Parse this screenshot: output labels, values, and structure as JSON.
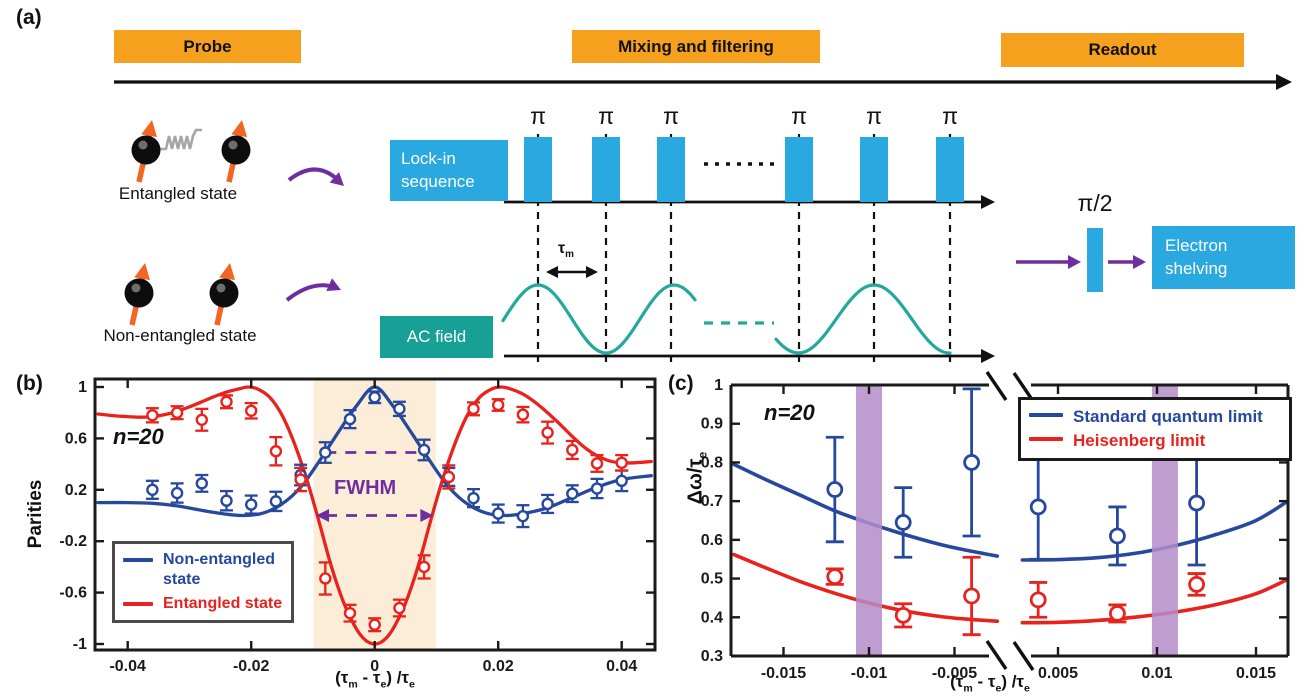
{
  "colors": {
    "stage_orange": "#F5A11E",
    "pulse_blue": "#2AA9E0",
    "teal": "#16A096",
    "teal_wave": "#23A89C",
    "purple": "#6E2F9E",
    "spin_orange": "#F26522",
    "series_blue": "#26499D",
    "series_red": "#E8231E",
    "shade_cream": "#FCEDD8",
    "band_purple": "#B58CC9"
  },
  "diagram": {
    "panel_label": "(a)",
    "stages": [
      {
        "label": "Probe"
      },
      {
        "label": "Mixing and filtering"
      },
      {
        "label": "Readout"
      }
    ],
    "entangled_label": "Entangled state",
    "non_entangled_label": "Non-entangled state",
    "lockin_lines": [
      "Lock-in",
      "sequence"
    ],
    "ac_label": "AC field",
    "electron_lines": [
      "Electron",
      "shelving"
    ],
    "pi_symbol": "π",
    "pi_half": "π/2",
    "tau_m_parts": [
      [
        "τ",
        ""
      ],
      [
        "m",
        "sub"
      ]
    ]
  },
  "chart_data": [
    {
      "id": "b",
      "type": "scatter",
      "panel_label": "(b)",
      "ylabel": "Parities",
      "xlabel_parts": [
        [
          "(τ",
          ""
        ],
        [
          "m",
          "sub"
        ],
        [
          " - τ",
          ""
        ],
        [
          "e",
          "sub"
        ],
        [
          ") /τ",
          ""
        ],
        [
          "e",
          "sub"
        ]
      ],
      "annotation": "n=20",
      "fwhm_label": "FWHM",
      "xlim": [
        -0.0453,
        0.0454
      ],
      "ylim": [
        -1.06,
        1.07
      ],
      "x_ticks": [
        -0.04,
        -0.02,
        0,
        0.02,
        0.04
      ],
      "x_tick_labels": [
        "-0.04",
        "-0.02",
        "0",
        "0.02",
        "0.04"
      ],
      "y_ticks": [
        1,
        0.6,
        0.2,
        -0.2,
        -0.6,
        -1
      ],
      "y_tick_labels": [
        "1",
        "0.6",
        "0.2",
        "-0.2",
        "-0.6",
        "-1"
      ],
      "shade_x": [
        -0.0099,
        0.0099
      ],
      "fwhm_dash_line": {
        "y": 0.49,
        "x": [
          -0.008,
          0.008
        ]
      },
      "fwhm_arrow": {
        "y": 0.0,
        "x": [
          -0.0095,
          0.0095
        ]
      },
      "legend": [
        {
          "label": "Non-entangled state",
          "color": "#26499D"
        },
        {
          "label": "Entangled state",
          "color": "#E8231E"
        }
      ],
      "series": [
        {
          "name": "Non-entangled state",
          "color": "#26499D",
          "points": [
            [
              -0.036,
              0.2,
              0.07
            ],
            [
              -0.032,
              0.175,
              0.075
            ],
            [
              -0.028,
              0.25,
              0.065
            ],
            [
              -0.024,
              0.115,
              0.075
            ],
            [
              -0.02,
              0.085,
              0.07
            ],
            [
              -0.016,
              0.11,
              0.075
            ],
            [
              -0.012,
              0.315,
              0.08
            ],
            [
              -0.008,
              0.49,
              0.08
            ],
            [
              -0.004,
              0.75,
              0.07
            ],
            [
              0,
              0.92,
              0.045
            ],
            [
              0.004,
              0.83,
              0.055
            ],
            [
              0.008,
              0.51,
              0.08
            ],
            [
              0.012,
              0.3,
              0.07
            ],
            [
              0.016,
              0.135,
              0.07
            ],
            [
              0.02,
              0.015,
              0.07
            ],
            [
              0.024,
              -0.005,
              0.085
            ],
            [
              0.028,
              0.09,
              0.07
            ],
            [
              0.032,
              0.17,
              0.065
            ],
            [
              0.036,
              0.21,
              0.075
            ],
            [
              0.04,
              0.27,
              0.08
            ]
          ],
          "curve": [
            [
              -0.0448,
              0.1
            ],
            [
              -0.04,
              0.1
            ],
            [
              -0.036,
              0.095
            ],
            [
              -0.032,
              0.075
            ],
            [
              -0.028,
              0.04
            ],
            [
              -0.024,
              0.01
            ],
            [
              -0.021,
              0.0
            ],
            [
              -0.018,
              0.02
            ],
            [
              -0.015,
              0.09
            ],
            [
              -0.012,
              0.22
            ],
            [
              -0.009,
              0.42
            ],
            [
              -0.006,
              0.64
            ],
            [
              -0.003,
              0.85
            ],
            [
              0,
              1.0
            ],
            [
              0.003,
              0.85
            ],
            [
              0.006,
              0.64
            ],
            [
              0.009,
              0.42
            ],
            [
              0.012,
              0.22
            ],
            [
              0.015,
              0.09
            ],
            [
              0.018,
              0.02
            ],
            [
              0.021,
              0.0
            ],
            [
              0.024,
              0.015
            ],
            [
              0.028,
              0.06
            ],
            [
              0.032,
              0.14
            ],
            [
              0.036,
              0.22
            ],
            [
              0.04,
              0.28
            ],
            [
              0.0448,
              0.31
            ]
          ]
        },
        {
          "name": "Entangled state",
          "color": "#E8231E",
          "points": [
            [
              -0.036,
              0.78,
              0.055
            ],
            [
              -0.032,
              0.8,
              0.05
            ],
            [
              -0.028,
              0.745,
              0.085
            ],
            [
              -0.024,
              0.885,
              0.05
            ],
            [
              -0.02,
              0.815,
              0.06
            ],
            [
              -0.016,
              0.5,
              0.11
            ],
            [
              -0.012,
              0.28,
              0.09
            ],
            [
              -0.008,
              -0.49,
              0.125
            ],
            [
              -0.004,
              -0.76,
              0.065
            ],
            [
              0,
              -0.85,
              0.05
            ],
            [
              0.004,
              -0.72,
              0.065
            ],
            [
              0.008,
              -0.4,
              0.09
            ],
            [
              0.012,
              0.3,
              0.09
            ],
            [
              0.016,
              0.83,
              0.05
            ],
            [
              0.02,
              0.86,
              0.045
            ],
            [
              0.024,
              0.785,
              0.06
            ],
            [
              0.028,
              0.645,
              0.085
            ],
            [
              0.032,
              0.51,
              0.07
            ],
            [
              0.036,
              0.405,
              0.065
            ],
            [
              0.04,
              0.41,
              0.06
            ]
          ],
          "curve": [
            [
              -0.0448,
              0.79
            ],
            [
              -0.042,
              0.775
            ],
            [
              -0.04,
              0.77
            ],
            [
              -0.038,
              0.765
            ],
            [
              -0.036,
              0.77
            ],
            [
              -0.034,
              0.785
            ],
            [
              -0.032,
              0.81
            ],
            [
              -0.03,
              0.845
            ],
            [
              -0.028,
              0.885
            ],
            [
              -0.026,
              0.925
            ],
            [
              -0.024,
              0.96
            ],
            [
              -0.022,
              0.985
            ],
            [
              -0.0205,
              1.0
            ],
            [
              -0.019,
              0.985
            ],
            [
              -0.017,
              0.92
            ],
            [
              -0.015,
              0.78
            ],
            [
              -0.013,
              0.56
            ],
            [
              -0.011,
              0.28
            ],
            [
              -0.009,
              -0.05
            ],
            [
              -0.007,
              -0.4
            ],
            [
              -0.005,
              -0.68
            ],
            [
              -0.003,
              -0.88
            ],
            [
              -0.0015,
              -0.97
            ],
            [
              0,
              -1.0
            ],
            [
              0.0015,
              -0.97
            ],
            [
              0.003,
              -0.88
            ],
            [
              0.005,
              -0.68
            ],
            [
              0.007,
              -0.4
            ],
            [
              0.009,
              -0.05
            ],
            [
              0.011,
              0.28
            ],
            [
              0.013,
              0.56
            ],
            [
              0.015,
              0.78
            ],
            [
              0.017,
              0.92
            ],
            [
              0.019,
              0.985
            ],
            [
              0.0205,
              1.0
            ],
            [
              0.022,
              0.985
            ],
            [
              0.024,
              0.945
            ],
            [
              0.026,
              0.88
            ],
            [
              0.028,
              0.8
            ],
            [
              0.03,
              0.71
            ],
            [
              0.032,
              0.615
            ],
            [
              0.034,
              0.53
            ],
            [
              0.036,
              0.465
            ],
            [
              0.038,
              0.425
            ],
            [
              0.04,
              0.41
            ],
            [
              0.042,
              0.41
            ],
            [
              0.0448,
              0.42
            ]
          ]
        }
      ]
    },
    {
      "id": "c",
      "type": "scatter",
      "panel_label": "(c)",
      "ylabel_parts": [
        [
          "Δω/τ",
          ""
        ],
        [
          "e",
          "sub"
        ]
      ],
      "xlabel_parts": [
        [
          "(τ",
          ""
        ],
        [
          "m",
          "sub"
        ],
        [
          " - τ",
          ""
        ],
        [
          "e",
          "sub"
        ],
        [
          ") /τ",
          ""
        ],
        [
          "e",
          "sub"
        ]
      ],
      "annotation": "n=20",
      "ylim": [
        0.3,
        1.0
      ],
      "y_ticks": [
        0.3,
        0.4,
        0.5,
        0.6,
        0.7,
        0.8,
        0.9,
        1
      ],
      "y_tick_labels": [
        "0.3",
        "0.4",
        "0.5",
        "0.6",
        "0.7",
        "0.8",
        "0.9",
        "1"
      ],
      "x_ticks_left": [
        -0.015,
        -0.01,
        -0.005
      ],
      "x_tick_labels_left": [
        "-0.015",
        "-0.01",
        "-0.005"
      ],
      "x_ticks_right": [
        0.005,
        0.01,
        0.015
      ],
      "x_tick_labels_right": [
        "0.005",
        "0.01",
        "0.015"
      ],
      "axis_break": true,
      "bands_x": [
        -0.01,
        0.0104
      ],
      "legend": [
        {
          "label": "Standard quantum limit",
          "color": "#26499D"
        },
        {
          "label": "Heisenberg limit",
          "color": "#E8231E"
        }
      ],
      "series": [
        {
          "name": "Standard quantum limit",
          "color": "#26499D",
          "points": [
            [
              -0.012,
              0.73,
              0.135
            ],
            [
              -0.008,
              0.645,
              0.09
            ],
            [
              -0.004,
              0.8,
              0.19
            ],
            [
              0.004,
              0.685,
              0.135
            ],
            [
              0.008,
              0.61,
              0.075
            ],
            [
              0.012,
              0.695,
              0.16
            ]
          ],
          "curve_left": [
            [
              -0.0179,
              0.795
            ],
            [
              -0.016,
              0.755
            ],
            [
              -0.014,
              0.715
            ],
            [
              -0.012,
              0.675
            ],
            [
              -0.01,
              0.643
            ],
            [
              -0.008,
              0.615
            ],
            [
              -0.006,
              0.59
            ],
            [
              -0.0045,
              0.575
            ],
            [
              -0.0025,
              0.558
            ]
          ],
          "curve_right": [
            [
              0.0032,
              0.548
            ],
            [
              0.005,
              0.549
            ],
            [
              0.007,
              0.554
            ],
            [
              0.009,
              0.566
            ],
            [
              0.011,
              0.586
            ],
            [
              0.013,
              0.614
            ],
            [
              0.015,
              0.65
            ],
            [
              0.0166,
              0.7
            ]
          ]
        },
        {
          "name": "Heisenberg limit",
          "color": "#E8231E",
          "points": [
            [
              -0.012,
              0.505,
              0.02
            ],
            [
              -0.008,
              0.405,
              0.03
            ],
            [
              -0.004,
              0.455,
              0.1
            ],
            [
              0.004,
              0.445,
              0.045
            ],
            [
              0.008,
              0.41,
              0.022
            ],
            [
              0.012,
              0.485,
              0.028
            ]
          ],
          "curve_left": [
            [
              -0.0179,
              0.562
            ],
            [
              -0.016,
              0.527
            ],
            [
              -0.014,
              0.492
            ],
            [
              -0.012,
              0.462
            ],
            [
              -0.01,
              0.437
            ],
            [
              -0.008,
              0.417
            ],
            [
              -0.006,
              0.403
            ],
            [
              -0.0045,
              0.396
            ],
            [
              -0.0025,
              0.39
            ]
          ],
          "curve_right": [
            [
              0.0032,
              0.386
            ],
            [
              0.005,
              0.387
            ],
            [
              0.007,
              0.392
            ],
            [
              0.009,
              0.401
            ],
            [
              0.011,
              0.414
            ],
            [
              0.013,
              0.433
            ],
            [
              0.015,
              0.461
            ],
            [
              0.0166,
              0.498
            ]
          ]
        }
      ]
    }
  ]
}
